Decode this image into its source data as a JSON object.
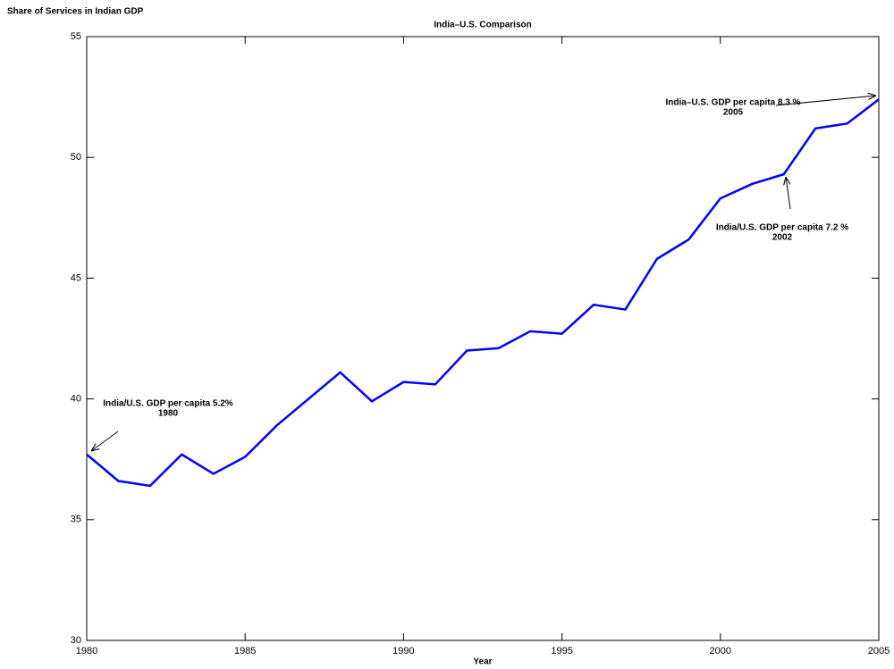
{
  "chart_data": {
    "type": "line",
    "title": "India–U.S. Comparison",
    "ylabel": "Share of Services in Indian GDP",
    "xlabel": "Year",
    "x": [
      1980,
      1981,
      1982,
      1983,
      1984,
      1985,
      1986,
      1987,
      1988,
      1989,
      1990,
      1991,
      1992,
      1993,
      1994,
      1995,
      1996,
      1997,
      1998,
      1999,
      2000,
      2001,
      2002,
      2003,
      2004,
      2005
    ],
    "series": [
      {
        "color": "#0000ff",
        "values": [
          37.7,
          36.6,
          36.4,
          37.7,
          36.9,
          37.6,
          38.9,
          40.0,
          41.1,
          39.9,
          40.7,
          40.6,
          42.0,
          42.1,
          42.8,
          42.7,
          43.9,
          43.7,
          45.8,
          46.6,
          48.3,
          48.9,
          49.3,
          51.2,
          51.4,
          52.4
        ]
      }
    ],
    "xlim": [
      1980,
      2005
    ],
    "xticks": [
      1980,
      1985,
      1990,
      1995,
      2000,
      2005
    ],
    "ylim": [
      30,
      55
    ],
    "yticks": [
      30,
      35,
      40,
      45,
      50,
      55
    ],
    "annotations": [
      {
        "lines": [
          "India/U.S. GDP per capita  5.2%",
          "1980"
        ]
      },
      {
        "lines": [
          "India/U.S. GDP per capita 7.2 %",
          "2002"
        ]
      },
      {
        "lines": [
          "India–U.S. GDP per capita 8.3 %",
          "2005"
        ]
      }
    ]
  }
}
